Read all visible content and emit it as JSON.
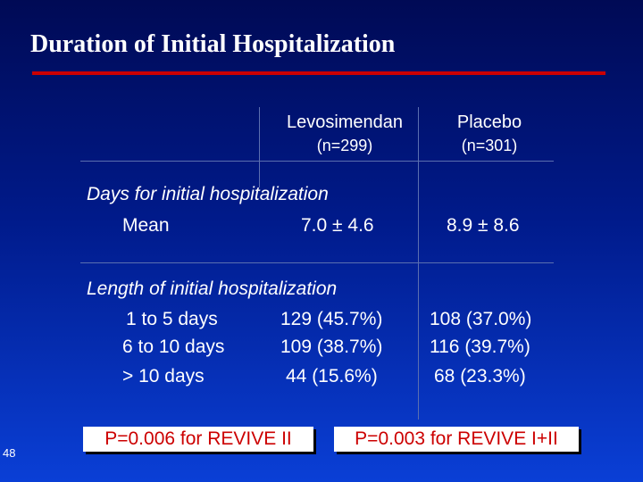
{
  "title": "Duration of Initial Hospitalization",
  "columns": [
    {
      "name": "Levosimendan",
      "n": "(n=299)"
    },
    {
      "name": "Placebo",
      "n": "(n=301)"
    }
  ],
  "section1": {
    "heading": "Days for initial hospitalization",
    "row_label": "Mean",
    "levo": "7.0 ± 4.6",
    "placebo": "8.9 ± 8.6"
  },
  "section2": {
    "heading": "Length of initial hospitalization",
    "rows": [
      {
        "label": "1 to 5 days",
        "levo": "129  (45.7%)",
        "placebo": "108  (37.0%)"
      },
      {
        "label": "6 to 10 days",
        "levo": "109  (38.7%)",
        "placebo": "116  (39.7%)"
      },
      {
        "label": "> 10 days",
        "levo": "44  (15.6%)",
        "placebo": "68  (23.3%)"
      }
    ]
  },
  "pvalues": {
    "left": "P=0.006 for REVIVE II",
    "right": "P=0.003 for REVIVE I+II"
  },
  "page_number": "48",
  "colors": {
    "accent_rule": "#cc0000",
    "pvalue_text": "#cc0000",
    "background_top": "#000a55",
    "background_bottom": "#0a3fd6"
  }
}
